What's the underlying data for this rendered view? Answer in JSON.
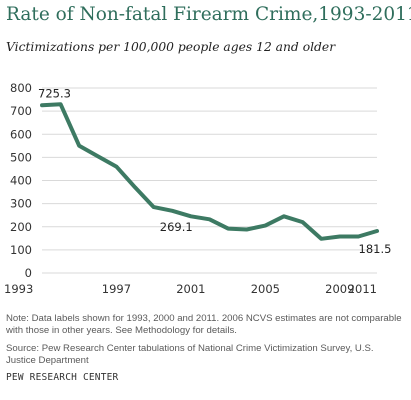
{
  "chart_data": {
    "type": "line",
    "title": "Rate of Non-fatal Firearm Crime,1993-2011",
    "subtitle": "Victimizations per 100,000  people ages 12 and older",
    "x": [
      1993,
      1994,
      1995,
      1996,
      1997,
      1998,
      1999,
      2000,
      2001,
      2002,
      2003,
      2004,
      2005,
      2006,
      2007,
      2008,
      2009,
      2010,
      2011
    ],
    "series": [
      {
        "values": [
          725.3,
          730,
          550,
          505,
          460,
          370,
          285,
          269.1,
          245,
          232,
          192,
          188,
          205,
          245,
          220,
          148,
          158,
          158,
          181.5
        ]
      }
    ],
    "ylim": [
      0,
      800
    ],
    "xlim": [
      1993,
      2011
    ],
    "y_ticks": [
      0,
      100,
      200,
      300,
      400,
      500,
      600,
      700,
      800
    ],
    "x_ticks": [
      1993,
      1997,
      2001,
      2005,
      2009,
      2011
    ],
    "x_tick_labels": [
      "1993",
      "1997",
      "2001",
      "2005",
      "2009",
      "2011"
    ],
    "data_labels": [
      {
        "x": 1993,
        "text": "725.3"
      },
      {
        "x": 2000,
        "text": "269.1"
      },
      {
        "x": 2011,
        "text": "181.5"
      }
    ],
    "grid": true,
    "line_color": "#3d7a63",
    "grid_color": "#d9d9d9"
  },
  "note": "Note: Data labels shown for 1993, 2000 and 2011. 2006 NCVS  estimates are not comparable with those in other years. See Methodology for details.",
  "source": "Source: Pew Research Center tabulations of National Crime Victimization Survey, U.S. Justice Department",
  "footer": "PEW RESEARCH CENTER"
}
